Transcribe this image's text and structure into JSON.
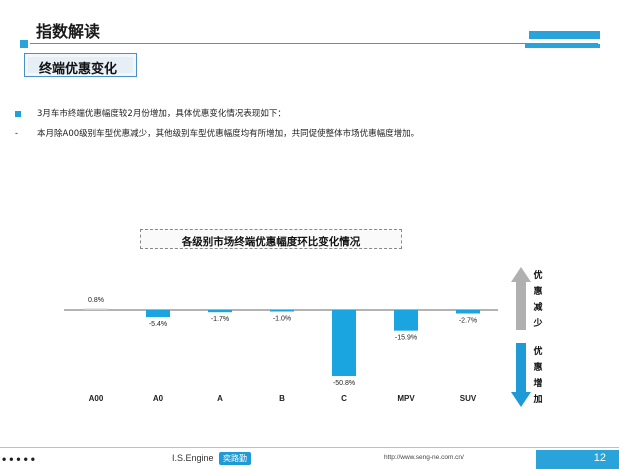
{
  "header": {
    "title": "指数解读"
  },
  "subheader": {
    "title": "终端优惠变化"
  },
  "text": {
    "line1": "3月车市终端优惠幅度较2月份增加，具体优惠变化情况表现如下：",
    "dash": "-",
    "line2": "本月除A00级别车型优惠减少，其他级别车型优惠幅度均有所增加，共同促使整体市场优惠幅度增加。"
  },
  "side_labels": {
    "up": [
      "优",
      "惠",
      "减",
      "少"
    ],
    "down": [
      "优",
      "惠",
      "增",
      "加"
    ]
  },
  "chart_data": {
    "type": "bar",
    "title": "各级别市场终端优惠幅度环比变化情况",
    "categories": [
      "A00",
      "A0",
      "A",
      "B",
      "C",
      "MPV",
      "SUV"
    ],
    "values": [
      0.8,
      -5.4,
      -1.7,
      -1.0,
      -50.8,
      -15.9,
      -2.7
    ],
    "data_labels": [
      "0.8%",
      "-5.4%",
      "-1.7%",
      "-1.0%",
      "-50.8%",
      "-15.9%",
      "-2.7%"
    ],
    "colors": {
      "bar": "#1aa5e0",
      "axis": "#9a9a9a",
      "arrow_up": "#b0b0b0",
      "arrow_down": "#1e9ad6"
    },
    "grid": false,
    "legend": "none"
  },
  "footer": {
    "dots": "•••••",
    "brand": "I.S.Engine",
    "brand_cn": "奕路勤",
    "url": "http://www.seng-ne.com.cn/",
    "page": "12"
  }
}
